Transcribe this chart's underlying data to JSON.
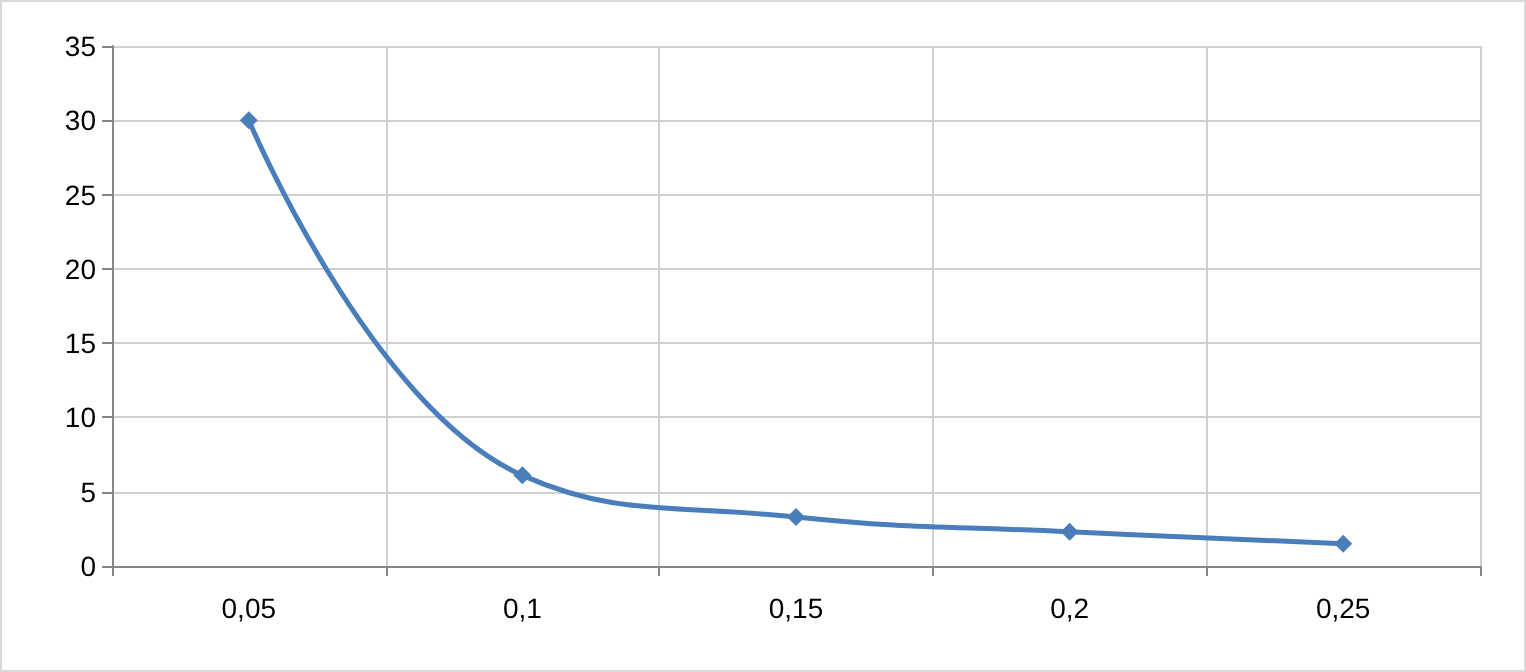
{
  "chart_data": {
    "type": "line",
    "categories": [
      "0,05",
      "0,1",
      "0,15",
      "0,2",
      "0,25"
    ],
    "series": [
      {
        "color": "#4a7ebb",
        "values": [
          30,
          6.1,
          3.3,
          2.3,
          1.5
        ]
      }
    ],
    "ylim": [
      0,
      35
    ],
    "yticks": [
      0,
      5,
      10,
      15,
      20,
      25,
      30,
      35
    ],
    "grid": true,
    "marker": "diamond",
    "line_style": "solid"
  }
}
